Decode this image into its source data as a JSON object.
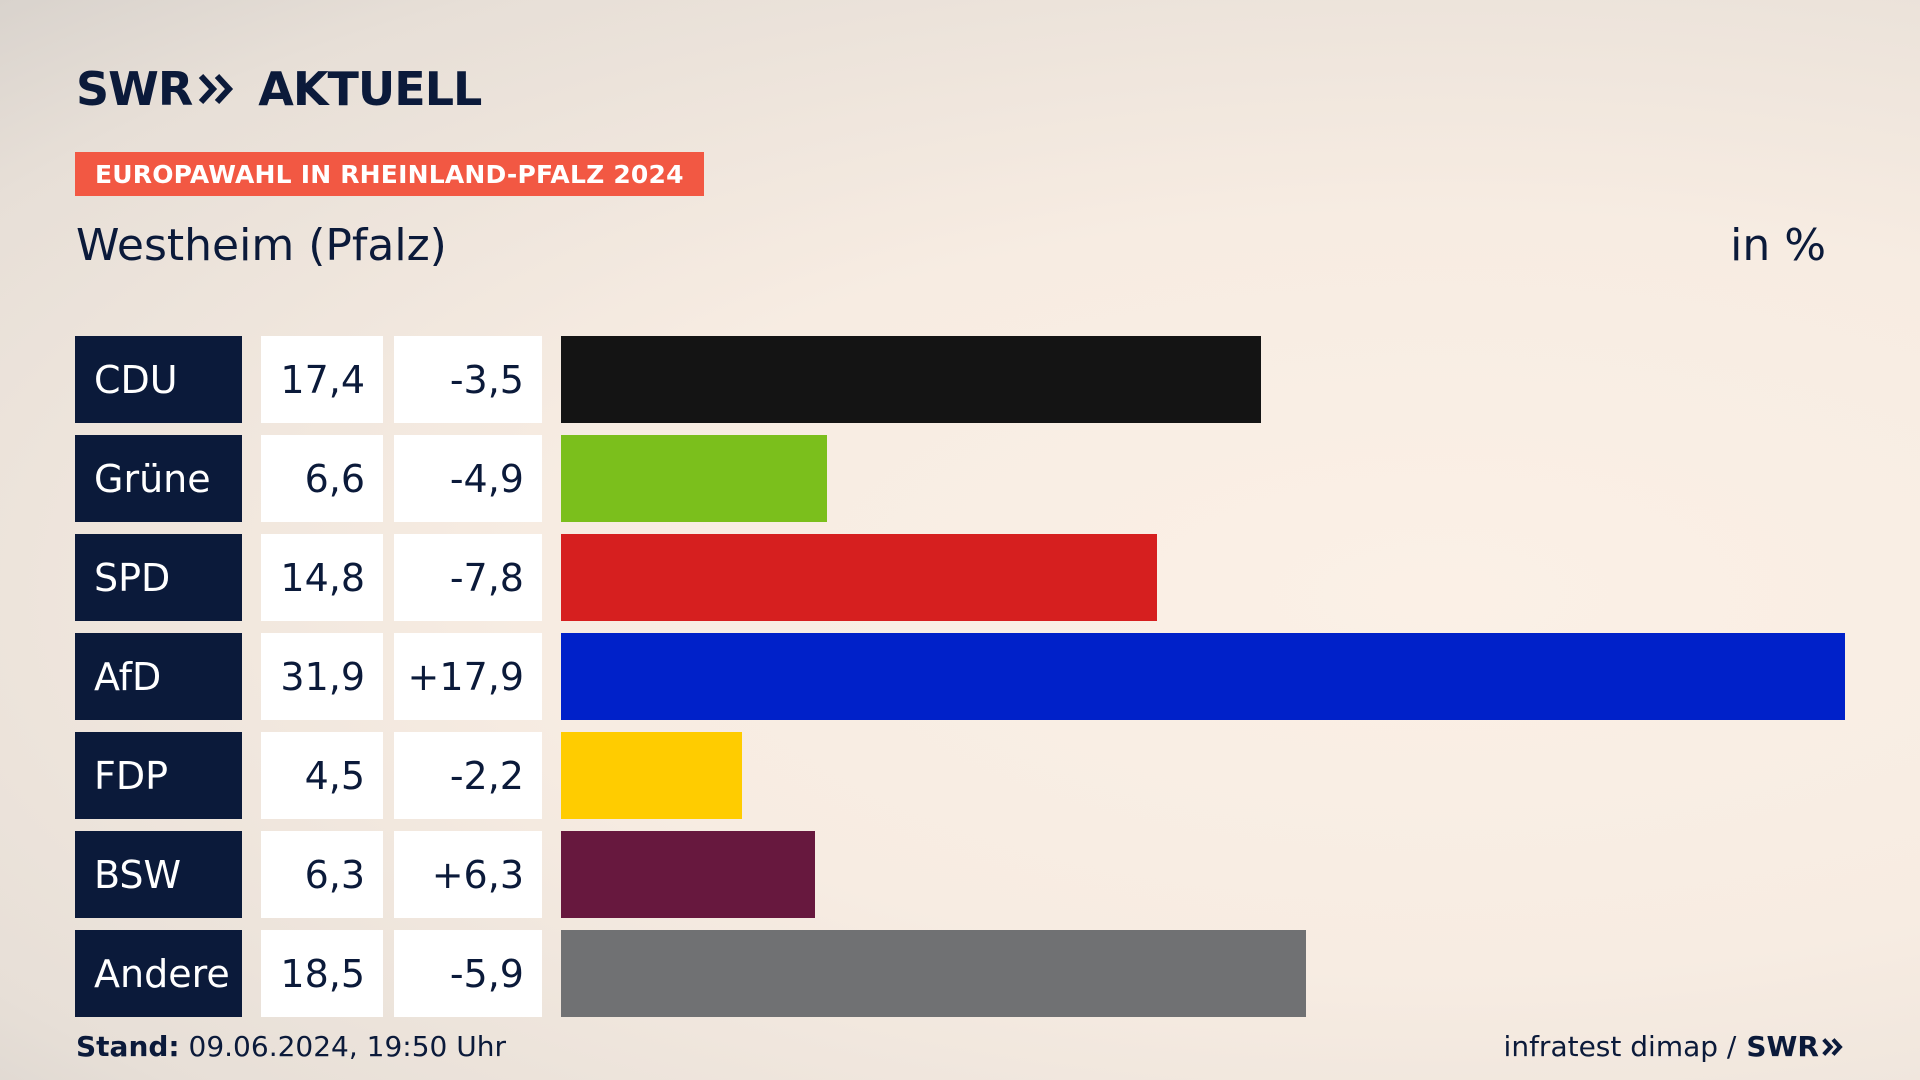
{
  "header": {
    "brand": "SWR",
    "product": "AKTUELL",
    "badge": "EUROPAWAHL IN RHEINLAND-PFALZ 2024",
    "title": "Westheim (Pfalz)",
    "unit": "in %"
  },
  "colors": {
    "badge": "#f25843",
    "party_label_bg": "#0b1a3a",
    "text": "#0b1a3a"
  },
  "chart_data": {
    "type": "bar",
    "orientation": "horizontal",
    "title": "Westheim (Pfalz)",
    "ylabel": "in %",
    "categories": [
      "CDU",
      "Grüne",
      "SPD",
      "AfD",
      "FDP",
      "BSW",
      "Andere"
    ],
    "values": [
      17.4,
      6.6,
      14.8,
      31.9,
      4.5,
      6.3,
      18.5
    ],
    "values_label": [
      "17,4",
      "6,6",
      "14,8",
      "31,9",
      "4,5",
      "6,3",
      "18,5"
    ],
    "change": [
      -3.5,
      -4.9,
      -7.8,
      17.9,
      -2.2,
      6.3,
      -5.9
    ],
    "change_label": [
      "-3,5",
      "-4,9",
      "-7,8",
      "+17,9",
      "-2,2",
      "+6,3",
      "-5,9"
    ],
    "colors": [
      "#141414",
      "#7bbf1c",
      "#d61f1f",
      "#0021c9",
      "#ffcc00",
      "#67183e",
      "#707173"
    ],
    "xlim": [
      0,
      31.9
    ]
  },
  "footer": {
    "stand_label": "Stand:",
    "stand_value": "09.06.2024, 19:50 Uhr",
    "source": "infratest dimap /",
    "source_brand": "SWR"
  }
}
